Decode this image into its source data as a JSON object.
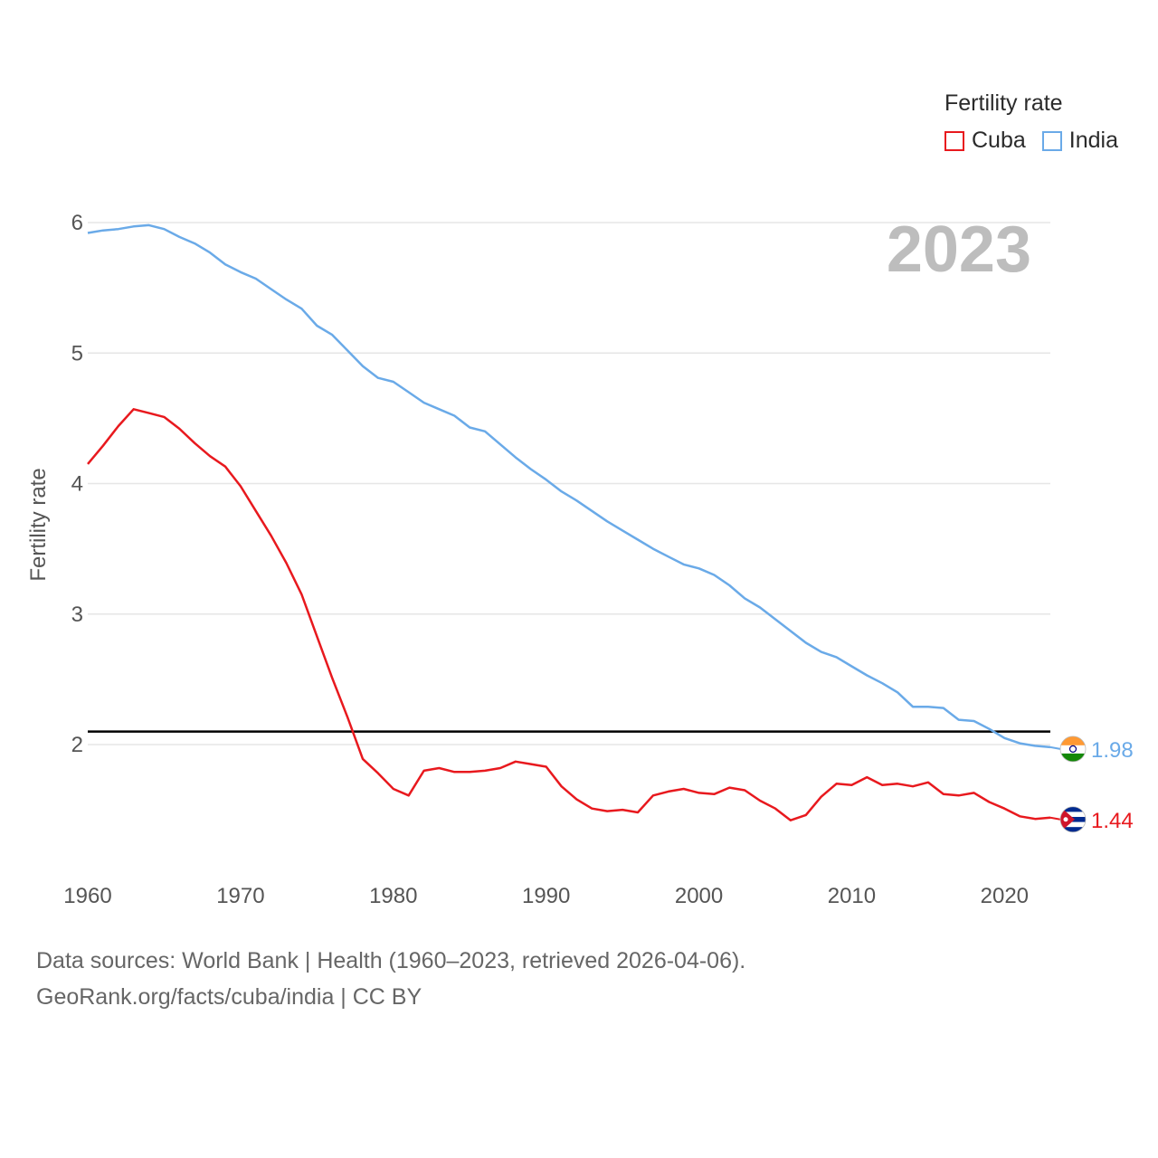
{
  "legend": {
    "title": "Fertility rate",
    "items": [
      {
        "name": "Cuba",
        "color": "#e8191e"
      },
      {
        "name": "India",
        "color": "#6aaae8"
      }
    ]
  },
  "year_label": "2023",
  "source": {
    "line1": "Data sources: World Bank | Health (1960–2023, retrieved 2026-04-06).",
    "line2": "GeoRank.org/facts/cuba/india | CC BY"
  },
  "chart_data": {
    "type": "line",
    "title": "Fertility rate",
    "xlabel": "",
    "ylabel": "Fertility rate",
    "xlim": [
      1960,
      2023
    ],
    "ylim": [
      1.2,
      6.0
    ],
    "x_ticks": [
      "1960",
      "1970",
      "1980",
      "1990",
      "2000",
      "2010",
      "2020"
    ],
    "y_ticks": [
      "2",
      "3",
      "4",
      "5",
      "6"
    ],
    "grid": true,
    "reference_line": {
      "y": 2.1,
      "color": "#000000"
    },
    "x": [
      1960,
      1961,
      1962,
      1963,
      1964,
      1965,
      1966,
      1967,
      1968,
      1969,
      1970,
      1971,
      1972,
      1973,
      1974,
      1975,
      1976,
      1977,
      1978,
      1979,
      1980,
      1981,
      1982,
      1983,
      1984,
      1985,
      1986,
      1987,
      1988,
      1989,
      1990,
      1991,
      1992,
      1993,
      1994,
      1995,
      1996,
      1997,
      1998,
      1999,
      2000,
      2001,
      2002,
      2003,
      2004,
      2005,
      2006,
      2007,
      2008,
      2009,
      2010,
      2011,
      2012,
      2013,
      2014,
      2015,
      2016,
      2017,
      2018,
      2019,
      2020,
      2021,
      2022,
      2023
    ],
    "series": [
      {
        "name": "Cuba",
        "color": "#e8191e",
        "end_label": "1.44",
        "values": [
          4.15,
          4.29,
          4.44,
          4.57,
          4.54,
          4.51,
          4.42,
          4.31,
          4.21,
          4.13,
          3.98,
          3.79,
          3.6,
          3.39,
          3.15,
          2.83,
          2.51,
          2.21,
          1.89,
          1.78,
          1.66,
          1.61,
          1.8,
          1.82,
          1.79,
          1.79,
          1.8,
          1.82,
          1.87,
          1.85,
          1.83,
          1.68,
          1.58,
          1.51,
          1.49,
          1.5,
          1.48,
          1.61,
          1.64,
          1.66,
          1.63,
          1.62,
          1.67,
          1.65,
          1.57,
          1.51,
          1.42,
          1.46,
          1.6,
          1.7,
          1.69,
          1.75,
          1.69,
          1.7,
          1.68,
          1.71,
          1.62,
          1.61,
          1.63,
          1.56,
          1.51,
          1.45,
          1.43,
          1.44
        ]
      },
      {
        "name": "India",
        "color": "#6aaae8",
        "end_label": "1.98",
        "values": [
          5.92,
          5.94,
          5.95,
          5.97,
          5.98,
          5.95,
          5.89,
          5.84,
          5.77,
          5.68,
          5.62,
          5.57,
          5.49,
          5.41,
          5.34,
          5.21,
          5.14,
          5.02,
          4.9,
          4.81,
          4.78,
          4.7,
          4.62,
          4.57,
          4.52,
          4.43,
          4.4,
          4.3,
          4.2,
          4.11,
          4.03,
          3.94,
          3.87,
          3.79,
          3.71,
          3.64,
          3.57,
          3.5,
          3.44,
          3.38,
          3.35,
          3.3,
          3.22,
          3.12,
          3.05,
          2.96,
          2.87,
          2.78,
          2.71,
          2.67,
          2.6,
          2.53,
          2.47,
          2.4,
          2.29,
          2.29,
          2.28,
          2.19,
          2.18,
          2.12,
          2.05,
          2.01,
          1.99,
          1.98
        ]
      }
    ]
  }
}
